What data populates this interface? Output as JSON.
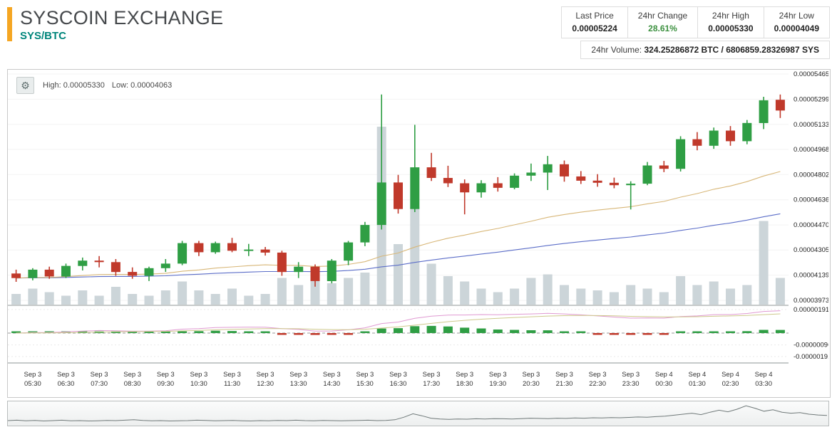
{
  "header": {
    "title": "SYSCOIN EXCHANGE",
    "pair": "SYS/BTC",
    "accent_color": "#F5A623",
    "pair_color": "#00857B",
    "change_color": "#3D9140",
    "stats": [
      {
        "label": "Last Price",
        "value": "0.00005224"
      },
      {
        "label": "24hr Change",
        "value": "28.61%"
      },
      {
        "label": "24hr High",
        "value": "0.00005330"
      },
      {
        "label": "24hr Low",
        "value": "0.00004049"
      }
    ],
    "volume_label": "24hr Volume:",
    "volume_value": "324.25286872 BTC / 6806859.28326987 SYS"
  },
  "chart": {
    "overlay": {
      "high": "High: 0.00005330",
      "low": "Low: 0.00004063"
    },
    "settings_icon": "gear"
  },
  "chart_data": {
    "type": "candlestick",
    "title": "SYS/BTC price chart with volume and MACD",
    "interval": "30m",
    "price_axis": {
      "ticks": [
        "0.00005465",
        "0.00005299",
        "0.00005133",
        "0.00004968",
        "0.00004802",
        "0.00004636",
        "0.00004470",
        "0.00004305",
        "0.00004139",
        "0.00003973"
      ]
    },
    "x_labels": [
      [
        "Sep 3",
        "05:30"
      ],
      [
        "Sep 3",
        "06:30"
      ],
      [
        "Sep 3",
        "07:30"
      ],
      [
        "Sep 3",
        "08:30"
      ],
      [
        "Sep 3",
        "09:30"
      ],
      [
        "Sep 3",
        "10:30"
      ],
      [
        "Sep 3",
        "11:30"
      ],
      [
        "Sep 3",
        "12:30"
      ],
      [
        "Sep 3",
        "13:30"
      ],
      [
        "Sep 3",
        "14:30"
      ],
      [
        "Sep 3",
        "15:30"
      ],
      [
        "Sep 3",
        "16:30"
      ],
      [
        "Sep 3",
        "17:30"
      ],
      [
        "Sep 3",
        "18:30"
      ],
      [
        "Sep 3",
        "19:30"
      ],
      [
        "Sep 3",
        "20:30"
      ],
      [
        "Sep 3",
        "21:30"
      ],
      [
        "Sep 3",
        "22:30"
      ],
      [
        "Sep 3",
        "23:30"
      ],
      [
        "Sep 4",
        "00:30"
      ],
      [
        "Sep 4",
        "01:30"
      ],
      [
        "Sep 4",
        "02:30"
      ],
      [
        "Sep 4",
        "03:30"
      ]
    ],
    "candles": [
      [
        4.15e-05,
        4.175e-05,
        4.095e-05,
        4.12e-05
      ],
      [
        4.12e-05,
        4.185e-05,
        4.105e-05,
        4.175e-05
      ],
      [
        4.175e-05,
        4.195e-05,
        4.115e-05,
        4.13e-05
      ],
      [
        4.13e-05,
        4.215e-05,
        4.12e-05,
        4.2e-05
      ],
      [
        4.2e-05,
        4.255e-05,
        4.17e-05,
        4.235e-05
      ],
      [
        4.235e-05,
        4.265e-05,
        4.19e-05,
        4.225e-05
      ],
      [
        4.225e-05,
        4.245e-05,
        4.135e-05,
        4.16e-05
      ],
      [
        4.16e-05,
        4.19e-05,
        4.115e-05,
        4.135e-05
      ],
      [
        4.135e-05,
        4.195e-05,
        4.1e-05,
        4.185e-05
      ],
      [
        4.185e-05,
        4.245e-05,
        4.16e-05,
        4.215e-05
      ],
      [
        4.215e-05,
        4.365e-05,
        4.205e-05,
        4.35e-05
      ],
      [
        4.35e-05,
        4.365e-05,
        4.265e-05,
        4.29e-05
      ],
      [
        4.29e-05,
        4.36e-05,
        4.28e-05,
        4.35e-05
      ],
      [
        4.35e-05,
        4.385e-05,
        4.29e-05,
        4.3e-05
      ],
      [
        4.3e-05,
        4.345e-05,
        4.265e-05,
        4.308e-05
      ],
      [
        4.308e-05,
        4.325e-05,
        4.268e-05,
        4.288e-05
      ],
      [
        4.288e-05,
        4.3e-05,
        4.135e-05,
        4.16e-05
      ],
      [
        4.16e-05,
        4.225e-05,
        4.12e-05,
        4.195e-05
      ],
      [
        4.195e-05,
        4.21e-05,
        4.063e-05,
        4.1e-05
      ],
      [
        4.1e-05,
        4.245e-05,
        4.085e-05,
        4.235e-05
      ],
      [
        4.235e-05,
        4.365e-05,
        4.205e-05,
        4.355e-05
      ],
      [
        4.355e-05,
        4.49e-05,
        4.33e-05,
        4.47e-05
      ],
      [
        4.47e-05,
        5.33e-05,
        4.44e-05,
        4.75e-05
      ],
      [
        4.75e-05,
        4.8e-05,
        4.545e-05,
        4.575e-05
      ],
      [
        4.575e-05,
        5.13e-05,
        4.555e-05,
        4.85e-05
      ],
      [
        4.85e-05,
        4.945e-05,
        4.76e-05,
        4.78e-05
      ],
      [
        4.78e-05,
        4.86e-05,
        4.72e-05,
        4.745e-05
      ],
      [
        4.745e-05,
        4.77e-05,
        4.54e-05,
        4.685e-05
      ],
      [
        4.685e-05,
        4.765e-05,
        4.65e-05,
        4.745e-05
      ],
      [
        4.745e-05,
        4.785e-05,
        4.69e-05,
        4.715e-05
      ],
      [
        4.715e-05,
        4.81e-05,
        4.705e-05,
        4.795e-05
      ],
      [
        4.795e-05,
        4.875e-05,
        4.76e-05,
        4.815e-05
      ],
      [
        4.815e-05,
        4.925e-05,
        4.7e-05,
        4.87e-05
      ],
      [
        4.87e-05,
        4.895e-05,
        4.755e-05,
        4.79e-05
      ],
      [
        4.79e-05,
        4.825e-05,
        4.74e-05,
        4.762e-05
      ],
      [
        4.762e-05,
        4.805e-05,
        4.722e-05,
        4.748e-05
      ],
      [
        4.748e-05,
        4.782e-05,
        4.712e-05,
        4.732e-05
      ],
      [
        4.732e-05,
        4.758e-05,
        4.572e-05,
        4.742e-05
      ],
      [
        4.742e-05,
        4.885e-05,
        4.732e-05,
        4.862e-05
      ],
      [
        4.862e-05,
        4.892e-05,
        4.818e-05,
        4.84e-05
      ],
      [
        4.84e-05,
        5.055e-05,
        4.822e-05,
        5.035e-05
      ],
      [
        5.035e-05,
        5.082e-05,
        4.962e-05,
        4.992e-05
      ],
      [
        4.992e-05,
        5.112e-05,
        4.972e-05,
        5.092e-05
      ],
      [
        5.092e-05,
        5.122e-05,
        4.992e-05,
        5.022e-05
      ],
      [
        5.022e-05,
        5.162e-05,
        5.002e-05,
        5.142e-05
      ],
      [
        5.142e-05,
        5.315e-05,
        5.102e-05,
        5.292e-05
      ],
      [
        5.295e-05,
        5.33e-05,
        5.175e-05,
        5.224e-05
      ]
    ],
    "volume_rel": [
      6,
      9,
      7,
      5,
      8,
      5,
      10,
      6,
      5,
      8,
      13,
      8,
      6,
      9,
      5,
      6,
      15,
      11,
      14,
      12,
      15,
      18,
      100,
      34,
      55,
      23,
      16,
      13,
      9,
      7,
      9,
      15,
      17,
      11,
      9,
      8,
      7,
      11,
      9,
      7,
      16,
      11,
      13,
      9,
      11,
      47,
      15
    ],
    "overlays": {
      "fast_ma": {
        "period": 28,
        "color": "#D8B778"
      },
      "slow_ma": {
        "period": 70,
        "color": "#5B6DC8"
      }
    },
    "indicator": {
      "type": "MACD",
      "ticks": [
        "0.00000191",
        "-0.00000096",
        "-0.00000191"
      ],
      "macd_fast": 12,
      "macd_slow": 26,
      "signal": 9,
      "line_color": "#E09AD2",
      "signal_color": "#CEC98C"
    },
    "colors": {
      "up": "#2F9E44",
      "down": "#C0392B",
      "volume": "#CCD5D9"
    },
    "navigator_series": [
      0.18,
      0.2,
      0.17,
      0.19,
      0.16,
      0.18,
      0.2,
      0.17,
      0.18,
      0.16,
      0.17,
      0.19,
      0.18,
      0.2,
      0.22,
      0.19,
      0.17,
      0.18,
      0.16,
      0.17,
      0.18,
      0.2,
      0.19,
      0.17,
      0.18,
      0.19,
      0.17,
      0.16,
      0.18,
      0.17,
      0.19,
      0.18,
      0.2,
      0.18,
      0.17,
      0.19,
      0.18,
      0.17,
      0.18,
      0.19,
      0.2,
      0.18,
      0.19,
      0.22,
      0.35,
      0.52,
      0.42,
      0.3,
      0.26,
      0.24,
      0.26,
      0.25,
      0.27,
      0.26,
      0.28,
      0.27,
      0.26,
      0.28,
      0.3,
      0.29,
      0.28,
      0.3,
      0.29,
      0.31,
      0.3,
      0.32,
      0.31,
      0.33,
      0.32,
      0.34,
      0.36,
      0.35,
      0.38,
      0.4,
      0.45,
      0.5,
      0.55,
      0.48,
      0.6,
      0.7,
      0.62,
      0.75,
      0.92,
      0.8,
      0.65,
      0.72,
      0.6,
      0.55,
      0.58,
      0.5,
      0.46,
      0.44
    ]
  }
}
